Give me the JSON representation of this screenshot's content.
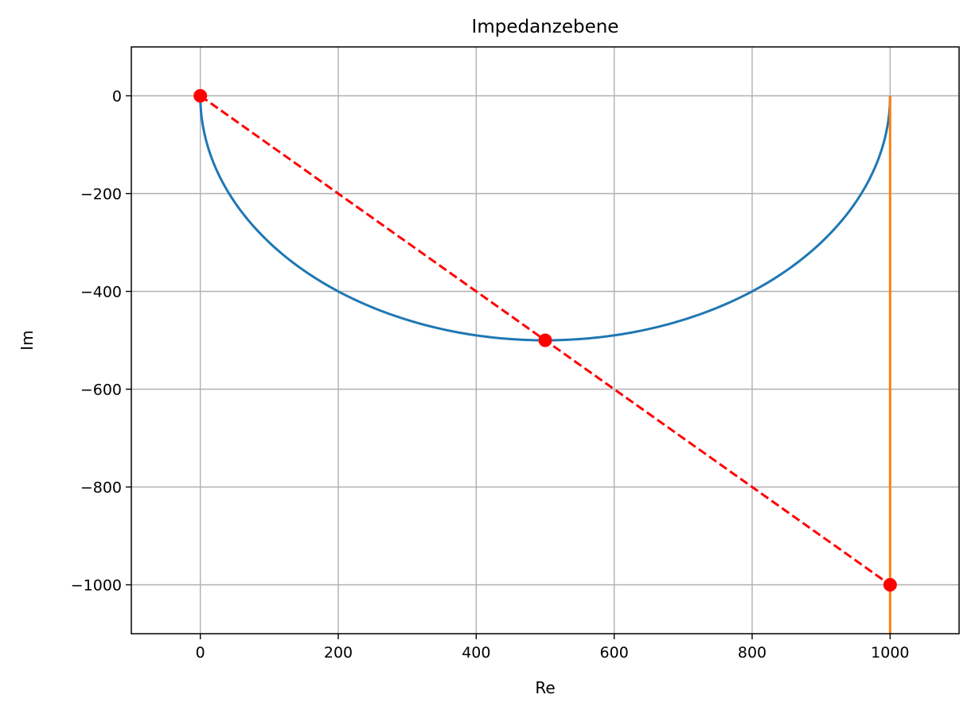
{
  "chart_data": {
    "type": "line",
    "title": "Impedanzebene",
    "xlabel": "Re",
    "ylabel": "Im",
    "xlim": [
      -100,
      1100
    ],
    "ylim": [
      -1100,
      100
    ],
    "grid": true,
    "xticks": [
      0,
      200,
      400,
      600,
      800,
      1000
    ],
    "yticks": [
      0,
      -200,
      -400,
      -600,
      -800,
      -1000
    ],
    "xtick_labels": [
      "0",
      "200",
      "400",
      "600",
      "800",
      "1000"
    ],
    "ytick_labels": [
      "0",
      "−200",
      "−400",
      "−600",
      "−800",
      "−1000"
    ],
    "series": [
      {
        "kind": "semicircle",
        "center": [
          500,
          0
        ],
        "radius": 500,
        "color": "#1f77b4",
        "style": "solid"
      },
      {
        "kind": "line",
        "x": [
          1000,
          1000
        ],
        "y": [
          0,
          -1100
        ],
        "color": "#ff7f0e",
        "style": "solid"
      },
      {
        "kind": "line-markers",
        "x": [
          0,
          500,
          1000
        ],
        "y": [
          0,
          -500,
          -1000
        ],
        "color": "#ff0000",
        "style": "dashed",
        "marker": "circle"
      }
    ]
  }
}
